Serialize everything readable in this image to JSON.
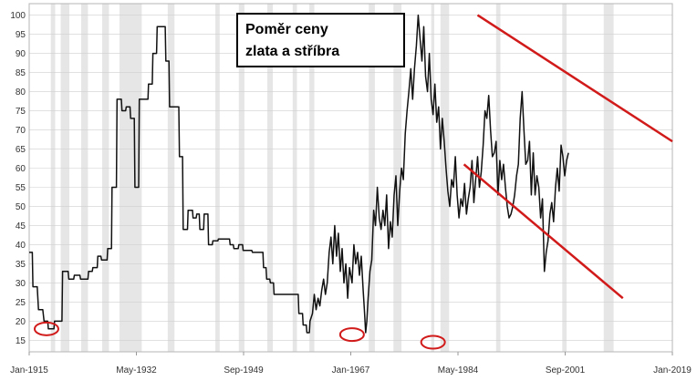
{
  "chart_data": {
    "type": "line",
    "title_lines": [
      "Poměr ceny",
      "zlata a stříbra"
    ],
    "xlabel": "",
    "ylabel": "",
    "x_ticks": [
      "Jan-1915",
      "May-1932",
      "Sep-1949",
      "Jan-1967",
      "May-1984",
      "Sep-2001",
      "Jan-2019"
    ],
    "y_ticks": [
      15,
      20,
      25,
      30,
      35,
      40,
      45,
      50,
      55,
      60,
      65,
      70,
      75,
      80,
      85,
      90,
      95,
      100
    ],
    "xlim": [
      1915,
      2019
    ],
    "ylim": [
      12,
      103
    ],
    "grid": true,
    "recession_bands": [
      [
        1918.5,
        1919.2
      ],
      [
        1920.1,
        1921.5
      ],
      [
        1923.4,
        1924.5
      ],
      [
        1926.8,
        1927.9
      ],
      [
        1929.6,
        1933.2
      ],
      [
        1937.4,
        1938.5
      ],
      [
        1945.1,
        1945.8
      ],
      [
        1948.9,
        1949.8
      ],
      [
        1953.5,
        1954.4
      ],
      [
        1957.6,
        1958.3
      ],
      [
        1960.3,
        1961.1
      ],
      [
        1969.9,
        1970.9
      ],
      [
        1973.9,
        1975.2
      ],
      [
        1980.0,
        1980.5
      ],
      [
        1981.5,
        1982.9
      ],
      [
        1990.5,
        1991.2
      ],
      [
        2001.2,
        2001.9
      ],
      [
        2007.9,
        2009.5
      ]
    ],
    "series": [
      {
        "values": [
          [
            1915.0,
            38
          ],
          [
            1915.5,
            38
          ],
          [
            1915.6,
            29
          ],
          [
            1916.3,
            29
          ],
          [
            1916.5,
            23
          ],
          [
            1917.2,
            23
          ],
          [
            1917.4,
            20
          ],
          [
            1918.0,
            20
          ],
          [
            1918.1,
            18
          ],
          [
            1919.0,
            18
          ],
          [
            1919.1,
            20
          ],
          [
            1920.3,
            20
          ],
          [
            1920.4,
            33
          ],
          [
            1921.3,
            33
          ],
          [
            1921.4,
            31
          ],
          [
            1922.2,
            31
          ],
          [
            1922.3,
            32
          ],
          [
            1923.2,
            32
          ],
          [
            1923.3,
            31
          ],
          [
            1924.5,
            31
          ],
          [
            1924.6,
            33
          ],
          [
            1925.2,
            33
          ],
          [
            1925.3,
            34
          ],
          [
            1926.0,
            34
          ],
          [
            1926.1,
            37
          ],
          [
            1926.6,
            37
          ],
          [
            1926.7,
            36
          ],
          [
            1927.6,
            36
          ],
          [
            1927.7,
            39
          ],
          [
            1928.3,
            39
          ],
          [
            1928.4,
            55
          ],
          [
            1929.1,
            55
          ],
          [
            1929.2,
            78
          ],
          [
            1929.9,
            78
          ],
          [
            1930.0,
            75
          ],
          [
            1930.6,
            75
          ],
          [
            1930.7,
            76
          ],
          [
            1931.3,
            76
          ],
          [
            1931.4,
            73
          ],
          [
            1932.0,
            73
          ],
          [
            1932.1,
            55
          ],
          [
            1932.7,
            55
          ],
          [
            1932.8,
            78
          ],
          [
            1934.2,
            78
          ],
          [
            1934.3,
            82
          ],
          [
            1934.9,
            82
          ],
          [
            1935.0,
            90
          ],
          [
            1935.6,
            90
          ],
          [
            1935.7,
            97
          ],
          [
            1937.0,
            97
          ],
          [
            1937.1,
            88
          ],
          [
            1937.6,
            88
          ],
          [
            1937.7,
            76
          ],
          [
            1939.2,
            76
          ],
          [
            1939.3,
            63
          ],
          [
            1939.8,
            63
          ],
          [
            1939.9,
            44
          ],
          [
            1940.6,
            44
          ],
          [
            1940.7,
            49
          ],
          [
            1941.4,
            49
          ],
          [
            1941.5,
            47
          ],
          [
            1942.0,
            47
          ],
          [
            1942.1,
            48
          ],
          [
            1942.5,
            48
          ],
          [
            1942.6,
            44
          ],
          [
            1943.2,
            44
          ],
          [
            1943.3,
            48
          ],
          [
            1943.9,
            48
          ],
          [
            1944.0,
            40
          ],
          [
            1944.6,
            40
          ],
          [
            1944.7,
            41
          ],
          [
            1945.5,
            41
          ],
          [
            1945.6,
            41.5
          ],
          [
            1947.4,
            41.5
          ],
          [
            1947.5,
            40
          ],
          [
            1948.0,
            40
          ],
          [
            1948.1,
            39
          ],
          [
            1948.8,
            39
          ],
          [
            1948.9,
            40
          ],
          [
            1949.5,
            40
          ],
          [
            1949.6,
            38.5
          ],
          [
            1951.0,
            38.5
          ],
          [
            1951.1,
            38
          ],
          [
            1952.8,
            38
          ],
          [
            1952.9,
            34
          ],
          [
            1953.3,
            34
          ],
          [
            1953.4,
            31
          ],
          [
            1953.9,
            31
          ],
          [
            1954.0,
            30
          ],
          [
            1954.5,
            30
          ],
          [
            1954.6,
            27
          ],
          [
            1958.5,
            27
          ],
          [
            1958.6,
            22
          ],
          [
            1959.2,
            22
          ],
          [
            1959.3,
            19
          ],
          [
            1959.8,
            19
          ],
          [
            1959.9,
            17
          ],
          [
            1960.3,
            17
          ],
          [
            1960.4,
            20
          ],
          [
            1960.8,
            22
          ],
          [
            1961.1,
            27
          ],
          [
            1961.4,
            23
          ],
          [
            1961.7,
            26
          ],
          [
            1962.0,
            24
          ],
          [
            1962.3,
            28
          ],
          [
            1962.6,
            31
          ],
          [
            1962.9,
            27
          ],
          [
            1963.2,
            30
          ],
          [
            1963.5,
            38
          ],
          [
            1963.8,
            42
          ],
          [
            1964.1,
            35
          ],
          [
            1964.4,
            45
          ],
          [
            1964.7,
            37
          ],
          [
            1965.0,
            43
          ],
          [
            1965.3,
            33
          ],
          [
            1965.6,
            39
          ],
          [
            1965.9,
            30
          ],
          [
            1966.2,
            35
          ],
          [
            1966.5,
            26
          ],
          [
            1966.8,
            34
          ],
          [
            1967.2,
            30
          ],
          [
            1967.5,
            40
          ],
          [
            1967.8,
            35
          ],
          [
            1968.1,
            38
          ],
          [
            1968.4,
            32
          ],
          [
            1968.7,
            37
          ],
          [
            1969.0,
            28
          ],
          [
            1969.2,
            23
          ],
          [
            1969.4,
            17
          ],
          [
            1969.6,
            20
          ],
          [
            1969.8,
            26
          ],
          [
            1970.1,
            33
          ],
          [
            1970.4,
            36
          ],
          [
            1970.7,
            49
          ],
          [
            1971.0,
            45
          ],
          [
            1971.3,
            55
          ],
          [
            1971.6,
            47
          ],
          [
            1971.9,
            44
          ],
          [
            1972.2,
            49
          ],
          [
            1972.5,
            45
          ],
          [
            1972.8,
            53
          ],
          [
            1973.1,
            39
          ],
          [
            1973.4,
            46
          ],
          [
            1973.7,
            42
          ],
          [
            1974.0,
            53
          ],
          [
            1974.3,
            58
          ],
          [
            1974.6,
            45
          ],
          [
            1974.9,
            54
          ],
          [
            1975.2,
            60
          ],
          [
            1975.5,
            57
          ],
          [
            1975.8,
            69
          ],
          [
            1976.1,
            75
          ],
          [
            1976.4,
            80
          ],
          [
            1976.7,
            86
          ],
          [
            1977.0,
            78
          ],
          [
            1977.3,
            86
          ],
          [
            1977.6,
            92
          ],
          [
            1977.9,
            100
          ],
          [
            1978.2,
            94
          ],
          [
            1978.5,
            88
          ],
          [
            1978.8,
            97
          ],
          [
            1979.1,
            84
          ],
          [
            1979.4,
            80
          ],
          [
            1979.7,
            90
          ],
          [
            1980.0,
            78
          ],
          [
            1980.3,
            74
          ],
          [
            1980.6,
            82
          ],
          [
            1980.9,
            72
          ],
          [
            1981.2,
            76
          ],
          [
            1981.5,
            65
          ],
          [
            1981.8,
            73
          ],
          [
            1982.1,
            67
          ],
          [
            1982.4,
            60
          ],
          [
            1982.7,
            54
          ],
          [
            1983.0,
            50
          ],
          [
            1983.3,
            57
          ],
          [
            1983.6,
            55
          ],
          [
            1983.9,
            63
          ],
          [
            1984.2,
            53
          ],
          [
            1984.5,
            47
          ],
          [
            1984.8,
            52
          ],
          [
            1985.1,
            50
          ],
          [
            1985.4,
            56
          ],
          [
            1985.7,
            48
          ],
          [
            1986.0,
            52
          ],
          [
            1986.3,
            55
          ],
          [
            1986.6,
            62
          ],
          [
            1986.9,
            51
          ],
          [
            1987.2,
            57
          ],
          [
            1987.5,
            63
          ],
          [
            1987.8,
            55
          ],
          [
            1988.1,
            59
          ],
          [
            1988.4,
            66
          ],
          [
            1988.7,
            75
          ],
          [
            1989.0,
            73
          ],
          [
            1989.3,
            79
          ],
          [
            1989.6,
            70
          ],
          [
            1989.9,
            63
          ],
          [
            1990.2,
            64
          ],
          [
            1990.5,
            67
          ],
          [
            1990.8,
            53
          ],
          [
            1991.1,
            62
          ],
          [
            1991.4,
            57
          ],
          [
            1991.7,
            61
          ],
          [
            1992.0,
            55
          ],
          [
            1992.3,
            50
          ],
          [
            1992.6,
            47
          ],
          [
            1992.9,
            48
          ],
          [
            1993.2,
            50
          ],
          [
            1993.5,
            53
          ],
          [
            1993.8,
            58
          ],
          [
            1994.1,
            61
          ],
          [
            1994.4,
            73
          ],
          [
            1994.7,
            80
          ],
          [
            1995.0,
            70
          ],
          [
            1995.3,
            61
          ],
          [
            1995.6,
            62
          ],
          [
            1995.9,
            67
          ],
          [
            1996.2,
            53
          ],
          [
            1996.5,
            64
          ],
          [
            1996.8,
            53
          ],
          [
            1997.1,
            58
          ],
          [
            1997.4,
            55
          ],
          [
            1997.7,
            47
          ],
          [
            1998.0,
            52
          ],
          [
            1998.3,
            33
          ],
          [
            1998.6,
            38
          ],
          [
            1998.9,
            41
          ],
          [
            1999.2,
            48
          ],
          [
            1999.5,
            51
          ],
          [
            1999.8,
            46
          ],
          [
            2000.1,
            55
          ],
          [
            2000.4,
            60
          ],
          [
            2000.7,
            54
          ],
          [
            2001.0,
            66
          ],
          [
            2001.3,
            63
          ],
          [
            2001.6,
            58
          ],
          [
            2001.9,
            62
          ],
          [
            2002.2,
            64
          ]
        ]
      }
    ],
    "annotations": {
      "circles": [
        {
          "x": 1917.8,
          "y": 18
        },
        {
          "x": 1967.2,
          "y": 16.5
        },
        {
          "x": 1980.3,
          "y": 14.5
        }
      ],
      "trend_upper": [
        [
          1987.5,
          100
        ],
        [
          2019.0,
          67
        ]
      ],
      "trend_lower": [
        [
          1985.3,
          61
        ],
        [
          2011.0,
          26
        ]
      ]
    },
    "colors": {
      "line": "#111111",
      "band": "#e6e6e6",
      "grid": "#cfcfcf",
      "annotation": "#d11a1a"
    }
  }
}
